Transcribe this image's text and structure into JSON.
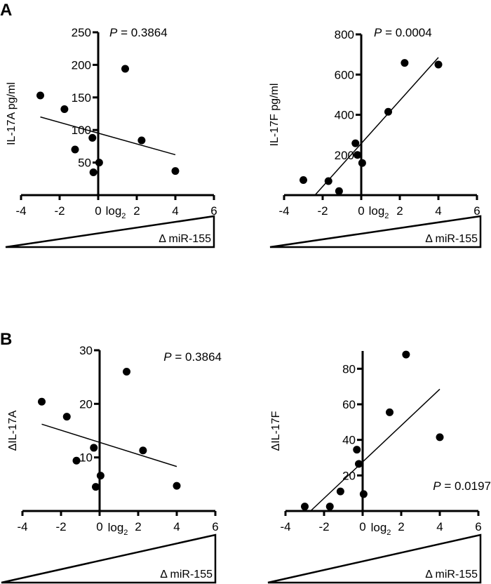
{
  "panel_labels": [
    "A",
    "B"
  ],
  "chart_data": [
    {
      "type": "scatter",
      "ylabel": "IL-17A pg/ml",
      "xlabel": "log",
      "xlabel_sub": "2",
      "gradient_label": "Δ miR-155",
      "annotation_italic": "P",
      "annotation": " = 0.3864",
      "xlim": [
        -4,
        6
      ],
      "ylim": [
        0,
        250
      ],
      "xticks": [
        -4,
        -2,
        0,
        2,
        4,
        6
      ],
      "yticks": [
        50,
        100,
        150,
        200,
        250
      ],
      "points": [
        [
          -3,
          153
        ],
        [
          -1.75,
          132
        ],
        [
          -1.2,
          70
        ],
        [
          -0.3,
          88
        ],
        [
          -0.25,
          35
        ],
        [
          0.05,
          50
        ],
        [
          1.4,
          194
        ],
        [
          2.25,
          84
        ],
        [
          4,
          37
        ]
      ],
      "fit_line": [
        [
          -3,
          120
        ],
        [
          4,
          62
        ]
      ],
      "color": "#000000"
    },
    {
      "type": "scatter",
      "ylabel": "IL-17F pg/ml",
      "xlabel": "log",
      "xlabel_sub": "2",
      "gradient_label": "Δ miR-155",
      "annotation_italic": "P",
      "annotation": " = 0.0004",
      "xlim": [
        -4,
        6
      ],
      "ylim": [
        0,
        800
      ],
      "xticks": [
        -4,
        -2,
        0,
        2,
        4,
        6
      ],
      "yticks": [
        200,
        400,
        600,
        800
      ],
      "points": [
        [
          -3,
          75
        ],
        [
          -1.7,
          70
        ],
        [
          -1.15,
          20
        ],
        [
          -0.3,
          258
        ],
        [
          -0.2,
          200
        ],
        [
          0.05,
          160
        ],
        [
          1.4,
          415
        ],
        [
          2.25,
          658
        ],
        [
          4,
          650
        ]
      ],
      "fit_line": [
        [
          -2.4,
          0
        ],
        [
          4,
          685
        ]
      ],
      "color": "#000000"
    },
    {
      "type": "scatter",
      "ylabel": "ΔIL-17A",
      "xlabel": "log",
      "xlabel_sub": "2",
      "gradient_label": "Δ miR-155",
      "annotation_italic": "P",
      "annotation": " = 0.3864",
      "xlim": [
        -4,
        6
      ],
      "ylim": [
        0,
        30
      ],
      "xticks": [
        -4,
        -2,
        0,
        2,
        4,
        6
      ],
      "yticks": [
        10,
        20,
        30
      ],
      "points": [
        [
          -3,
          20.4
        ],
        [
          -1.7,
          17.6
        ],
        [
          -1.2,
          9.4
        ],
        [
          -0.3,
          11.8
        ],
        [
          -0.2,
          4.5
        ],
        [
          0.05,
          6.6
        ],
        [
          1.4,
          26
        ],
        [
          2.25,
          11.3
        ],
        [
          4,
          4.7
        ]
      ],
      "fit_line": [
        [
          -3,
          16.2
        ],
        [
          4,
          8.3
        ]
      ],
      "color": "#000000"
    },
    {
      "type": "scatter",
      "ylabel": "ΔIL-17F",
      "xlabel": "log",
      "xlabel_sub": "2",
      "gradient_label": "Δ miR-155",
      "annotation_italic": "P",
      "annotation": " = 0.0197",
      "xlim": [
        -4,
        6
      ],
      "ylim": [
        0,
        90
      ],
      "xticks": [
        -4,
        -2,
        0,
        2,
        4,
        6
      ],
      "yticks": [
        20,
        40,
        60,
        80
      ],
      "points": [
        [
          -3,
          2.5
        ],
        [
          -1.7,
          2.5
        ],
        [
          -1.15,
          11
        ],
        [
          -0.3,
          34.5
        ],
        [
          -0.2,
          26.5
        ],
        [
          0.05,
          9.5
        ],
        [
          1.4,
          55.5
        ],
        [
          2.25,
          88
        ],
        [
          4,
          41.5
        ]
      ],
      "fit_line": [
        [
          -2.7,
          0
        ],
        [
          4,
          68.5
        ]
      ],
      "color": "#000000"
    }
  ]
}
